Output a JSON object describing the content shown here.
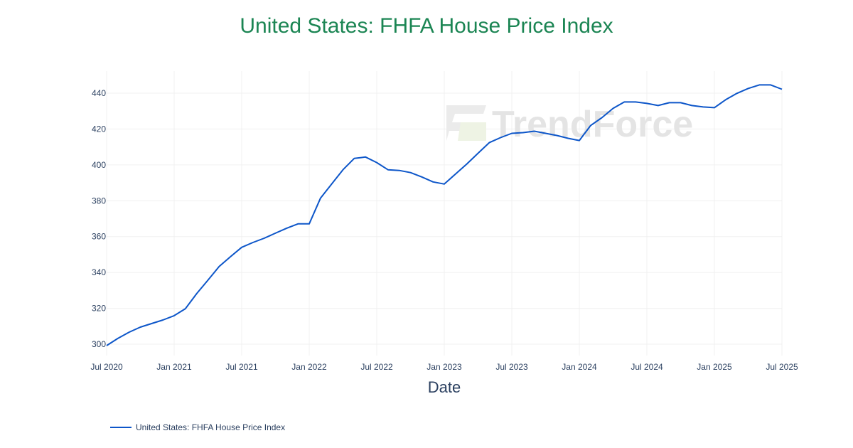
{
  "title": "United States: FHFA House Price Index",
  "watermark": "TrendForce",
  "colors": {
    "title": "#1b8553",
    "line": "#0d56c9",
    "grid": "#f0f0f0",
    "text": "#2a3f5f"
  },
  "legend": {
    "label": "United States: FHFA House Price Index"
  },
  "chart_data": {
    "type": "line",
    "title": "United States: FHFA House Price Index",
    "xlabel": "Date",
    "ylabel": "",
    "ylim": [
      297,
      452
    ],
    "xlim": [
      "2020-07",
      "2025-07"
    ],
    "grid": true,
    "legend_position": "bottom-left",
    "x_ticks": [
      "Jul 2020",
      "Jan 2021",
      "Jul 2021",
      "Jan 2022",
      "Jul 2022",
      "Jan 2023",
      "Jul 2023",
      "Jan 2024",
      "Jul 2024",
      "Jan 2025",
      "Jul 2025"
    ],
    "y_ticks": [
      300,
      320,
      340,
      360,
      380,
      400,
      420,
      440
    ],
    "x": [
      "2020-07",
      "2020-08",
      "2020-09",
      "2020-10",
      "2020-11",
      "2020-12",
      "2021-01",
      "2021-02",
      "2021-03",
      "2021-04",
      "2021-05",
      "2021-06",
      "2021-07",
      "2021-08",
      "2021-09",
      "2021-10",
      "2021-11",
      "2021-12",
      "2022-01",
      "2022-02",
      "2022-03",
      "2022-04",
      "2022-05",
      "2022-06",
      "2022-07",
      "2022-08",
      "2022-09",
      "2022-10",
      "2022-11",
      "2022-12",
      "2023-01",
      "2023-02",
      "2023-03",
      "2023-04",
      "2023-05",
      "2023-06",
      "2023-07",
      "2023-08",
      "2023-09",
      "2023-10",
      "2023-11",
      "2023-12",
      "2024-01",
      "2024-02",
      "2024-03",
      "2024-04",
      "2024-05",
      "2024-06",
      "2024-07",
      "2024-08",
      "2024-09",
      "2024-10",
      "2024-11",
      "2024-12",
      "2025-01",
      "2025-02",
      "2025-03",
      "2025-04",
      "2025-05",
      "2025-06",
      "2025-07"
    ],
    "series": [
      {
        "name": "United States: FHFA House Price Index",
        "values": [
          299.2,
          303.2,
          306.7,
          309.5,
          311.5,
          313.5,
          315.9,
          319.8,
          328.2,
          335.7,
          343.3,
          348.8,
          354.0,
          356.7,
          359.1,
          361.9,
          364.7,
          367.1,
          367.1,
          381.4,
          389.4,
          397.3,
          403.6,
          404.4,
          401.3,
          397.3,
          396.9,
          395.7,
          393.3,
          390.5,
          389.3,
          394.9,
          400.5,
          406.5,
          412.4,
          415.2,
          417.6,
          418.0,
          418.8,
          417.6,
          416.4,
          414.8,
          413.6,
          421.9,
          426.3,
          431.5,
          435.1,
          435.1,
          434.3,
          433.1,
          434.7,
          434.7,
          433.1,
          432.3,
          431.9,
          436.3,
          439.9,
          442.6,
          444.6,
          444.6,
          442.2
        ]
      }
    ]
  }
}
